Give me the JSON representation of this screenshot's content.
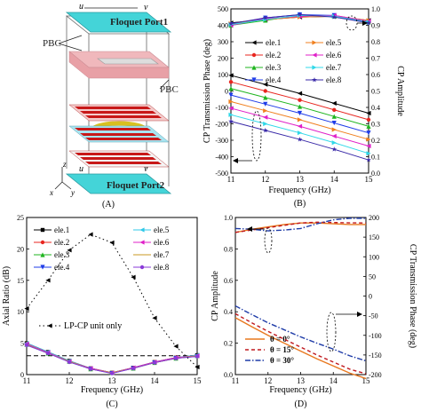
{
  "panels": {
    "A": {
      "label": "(A)",
      "top_port": "Floquet Port1",
      "bottom_port": "Floquet Port2",
      "pbc_left": "PBC",
      "pbc_right": "PBC",
      "axis_u_top": "u",
      "axis_v_top": "v",
      "axis_u_bottom": "u",
      "axis_v_bottom": "v",
      "axis_x": "x",
      "axis_y": "y",
      "axis_z": "z"
    }
  },
  "chart_data": [
    {
      "id": "B",
      "type": "line",
      "panel_label": "(B)",
      "xlabel": "Frequency (GHz)",
      "ylabel_left": "CP Transmission Phase (deg)",
      "ylabel_right": "CP Amplitude",
      "xlim": [
        11,
        15
      ],
      "ylim_left": [
        -500,
        500
      ],
      "ylim_right": [
        0,
        1
      ],
      "x_ticks": [
        11,
        12,
        13,
        14,
        15
      ],
      "y_ticks_left": [
        -500,
        -400,
        -300,
        -200,
        -100,
        0,
        100,
        200,
        300,
        400,
        500
      ],
      "y_ticks_right": [
        0.0,
        0.1,
        0.2,
        0.3,
        0.4,
        0.5,
        0.6,
        0.7,
        0.8,
        0.9,
        1.0
      ],
      "x": [
        11,
        12,
        13,
        14,
        15
      ],
      "series": [
        {
          "name": "ele.1",
          "color": "#000000",
          "marker": "triangle-left",
          "phase": [
            95,
            40,
            -15,
            -75,
            -135
          ],
          "amplitude": [
            0.915,
            0.935,
            0.95,
            0.955,
            0.93
          ]
        },
        {
          "name": "ele.2",
          "color": "#e8261f",
          "marker": "circle",
          "phase": [
            55,
            0,
            -55,
            -115,
            -175
          ],
          "amplitude": [
            0.905,
            0.94,
            0.955,
            0.96,
            0.925
          ]
        },
        {
          "name": "ele.3",
          "color": "#1fb51f",
          "marker": "triangle-up",
          "phase": [
            15,
            -40,
            -95,
            -155,
            -215
          ],
          "amplitude": [
            0.9,
            0.93,
            0.96,
            0.955,
            0.92
          ]
        },
        {
          "name": "ele.4",
          "color": "#1f3ce8",
          "marker": "triangle-down",
          "phase": [
            -25,
            -80,
            -135,
            -195,
            -255
          ],
          "amplitude": [
            0.905,
            0.945,
            0.965,
            0.96,
            0.915
          ]
        },
        {
          "name": "ele.5",
          "color": "#f08020",
          "marker": "triangle-right",
          "phase": [
            -65,
            -120,
            -175,
            -235,
            -295
          ],
          "amplitude": [
            0.91,
            0.935,
            0.95,
            0.955,
            0.93
          ]
        },
        {
          "name": "ele.6",
          "color": "#e020c8",
          "marker": "triangle-left",
          "phase": [
            -105,
            -160,
            -215,
            -275,
            -335
          ],
          "amplitude": [
            0.9,
            0.94,
            0.955,
            0.96,
            0.925
          ]
        },
        {
          "name": "ele.7",
          "color": "#30d8e8",
          "marker": "triangle-right",
          "phase": [
            -145,
            -200,
            -255,
            -315,
            -380
          ],
          "amplitude": [
            0.905,
            0.935,
            0.96,
            0.955,
            0.92
          ]
        },
        {
          "name": "ele.8",
          "color": "#3a2aa8",
          "marker": "star",
          "phase": [
            -185,
            -240,
            -295,
            -355,
            -420
          ],
          "amplitude": [
            0.91,
            0.945,
            0.965,
            0.95,
            0.915
          ]
        }
      ],
      "legend_placement": "center"
    },
    {
      "id": "C",
      "type": "line",
      "panel_label": "(C)",
      "xlabel": "Frequency (GHz)",
      "ylabel": "Axial Ratio (dB)",
      "xlim": [
        11,
        15
      ],
      "ylim": [
        0,
        25
      ],
      "x_ticks": [
        11,
        12,
        13,
        14,
        15
      ],
      "y_ticks": [
        0,
        5,
        10,
        15,
        20,
        25
      ],
      "x": [
        11,
        11.5,
        12,
        12.5,
        13,
        13.5,
        14,
        14.5,
        15
      ],
      "series": [
        {
          "name": "ele.1",
          "color": "#000000",
          "marker": "square",
          "values": [
            5.0,
            3.6,
            2.2,
            1.0,
            0.3,
            1.1,
            2.0,
            2.7,
            3.1
          ]
        },
        {
          "name": "ele.2",
          "color": "#e8261f",
          "marker": "circle",
          "values": [
            4.9,
            3.5,
            2.1,
            1.0,
            0.3,
            1.1,
            2.0,
            2.7,
            3.0
          ]
        },
        {
          "name": "ele.3",
          "color": "#1fb51f",
          "marker": "triangle-up",
          "values": [
            4.8,
            3.4,
            2.1,
            0.9,
            0.3,
            1.0,
            1.9,
            2.6,
            3.0
          ]
        },
        {
          "name": "ele.4",
          "color": "#1f3ce8",
          "marker": "triangle-down",
          "values": [
            4.7,
            3.4,
            2.0,
            0.9,
            0.2,
            1.0,
            1.9,
            2.6,
            2.9
          ]
        },
        {
          "name": "ele.5",
          "color": "#30c8e8",
          "marker": "triangle-left",
          "values": [
            5.0,
            3.6,
            2.2,
            1.0,
            0.3,
            1.1,
            2.0,
            2.7,
            3.1
          ]
        },
        {
          "name": "ele.6",
          "color": "#e020c8",
          "marker": "triangle-left",
          "values": [
            4.9,
            3.5,
            2.1,
            1.0,
            0.3,
            1.1,
            2.0,
            2.7,
            3.0
          ]
        },
        {
          "name": "ele.7",
          "color": "#c89a20",
          "marker": "none",
          "values": [
            4.8,
            3.4,
            2.1,
            0.9,
            0.3,
            1.0,
            1.9,
            2.6,
            3.0
          ]
        },
        {
          "name": "ele.8",
          "color": "#8a3ad8",
          "marker": "circle",
          "values": [
            4.7,
            3.4,
            2.0,
            0.9,
            0.2,
            1.0,
            1.9,
            2.6,
            2.9
          ]
        },
        {
          "name": "LP-CP unit only",
          "color": "#000000",
          "marker": "triangle-left",
          "dash": "dashdot",
          "values": [
            10.5,
            15.0,
            19.8,
            22.3,
            21.0,
            15.5,
            9.0,
            4.5,
            1.2
          ]
        }
      ],
      "reference_line": {
        "y": 3,
        "style": "dashed"
      },
      "legend_placement": "top"
    },
    {
      "id": "D",
      "type": "line",
      "panel_label": "(D)",
      "xlabel": "Frequency (GHz)",
      "ylabel_left": "CP Amplitude",
      "ylabel_right": "CP Transmission Phase (deg)",
      "xlim": [
        11,
        15
      ],
      "ylim_left": [
        0,
        1
      ],
      "ylim_right": [
        -200,
        200
      ],
      "x_ticks": [
        11,
        12,
        13,
        14,
        15
      ],
      "y_ticks_left": [
        0.0,
        0.2,
        0.4,
        0.6,
        0.8,
        1.0
      ],
      "y_ticks_right": [
        -200,
        -150,
        -100,
        -50,
        0,
        50,
        100,
        150,
        200
      ],
      "x": [
        11,
        11.5,
        12,
        12.5,
        13,
        13.5,
        14,
        14.5,
        15
      ],
      "series": [
        {
          "name": "θ = 0°",
          "color": "#e8781f",
          "dash": "solid",
          "amplitude": [
            0.905,
            0.925,
            0.94,
            0.955,
            0.965,
            0.965,
            0.96,
            0.955,
            0.955
          ],
          "phase": [
            -55,
            -78,
            -100,
            -120,
            -140,
            -160,
            -178,
            -196,
            -210
          ]
        },
        {
          "name": "θ = 15°",
          "color": "#c0181f",
          "dash": "dashed",
          "amplitude": [
            0.905,
            0.92,
            0.935,
            0.95,
            0.965,
            0.97,
            0.968,
            0.966,
            0.965
          ],
          "phase": [
            -45,
            -68,
            -90,
            -110,
            -130,
            -150,
            -168,
            -186,
            -198
          ]
        },
        {
          "name": "θ = 30°",
          "color": "#1f3ca8",
          "dash": "dashdot",
          "amplitude": [
            0.93,
            0.925,
            0.915,
            0.92,
            0.93,
            0.96,
            0.985,
            0.995,
            0.995
          ],
          "phase": [
            -25,
            -47,
            -68,
            -86,
            -104,
            -120,
            -135,
            -152,
            -165
          ]
        }
      ],
      "legend_placement": "bottom-left"
    }
  ]
}
